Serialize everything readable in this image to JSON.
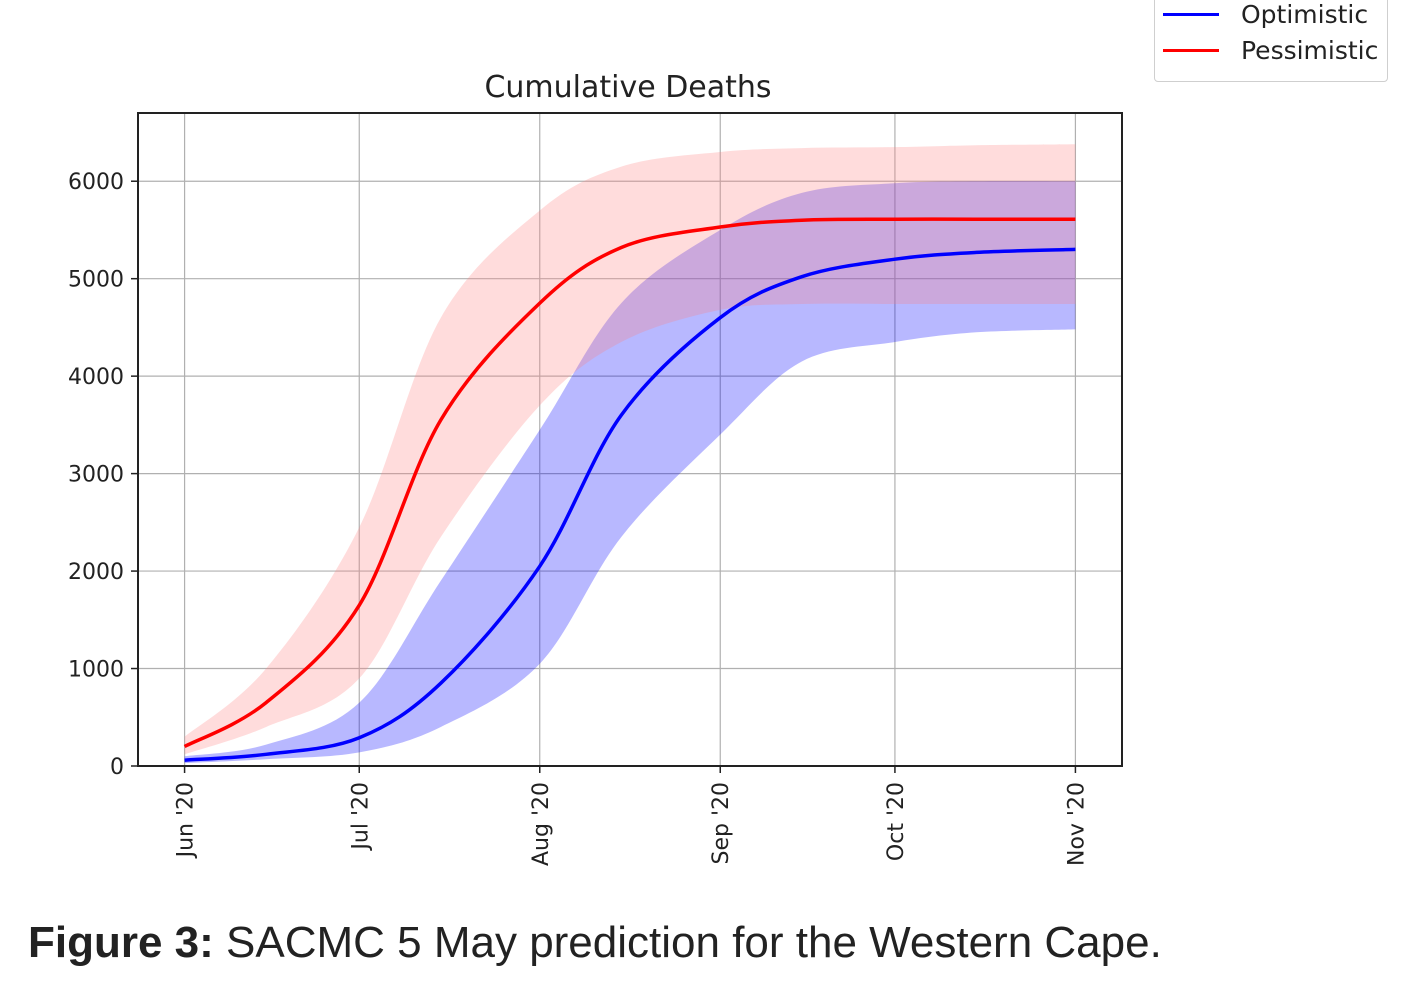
{
  "chart_data": {
    "type": "line",
    "title": "Cumulative Deaths",
    "xlabel": "",
    "ylabel": "",
    "x_ticks": [
      "2020-06-01",
      "2020-07-01",
      "2020-08-01",
      "2020-09-01",
      "2020-10-01",
      "2020-11-01"
    ],
    "x_tick_labels": [
      "Jun '20",
      "Jul '20",
      "Aug '20",
      "Sep '20",
      "Oct '20",
      "Nov '20"
    ],
    "xlim": [
      "2020-05-24",
      "2020-11-09"
    ],
    "y_ticks": [
      0,
      1000,
      2000,
      3000,
      4000,
      5000,
      6000
    ],
    "y_tick_labels": [
      "0",
      "1000",
      "2000",
      "3000",
      "4000",
      "5000",
      "6000"
    ],
    "ylim": [
      0,
      6700
    ],
    "grid": true,
    "legend_position": "top-right, outside plot",
    "series": [
      {
        "name": "Optimistic",
        "color": "#0000ff",
        "band_color": "#0000ff",
        "x": [
          "2020-06-01",
          "2020-06-15",
          "2020-07-01",
          "2020-07-15",
          "2020-08-01",
          "2020-08-15",
          "2020-09-01",
          "2020-09-15",
          "2020-10-01",
          "2020-10-15",
          "2020-11-01"
        ],
        "y": [
          60,
          120,
          290,
          850,
          2050,
          3600,
          4600,
          5020,
          5200,
          5270,
          5300
        ],
        "lower": [
          30,
          70,
          140,
          400,
          1050,
          2350,
          3400,
          4150,
          4350,
          4450,
          4480
        ],
        "upper": [
          100,
          220,
          650,
          1900,
          3450,
          4750,
          5500,
          5880,
          5980,
          6000,
          6000
        ]
      },
      {
        "name": "Pessimistic",
        "color": "#ff0000",
        "band_color": "#ff8080",
        "x": [
          "2020-06-01",
          "2020-06-15",
          "2020-07-01",
          "2020-07-15",
          "2020-08-01",
          "2020-08-15",
          "2020-09-01",
          "2020-09-15",
          "2020-10-01",
          "2020-10-15",
          "2020-11-01"
        ],
        "y": [
          200,
          650,
          1650,
          3550,
          4750,
          5320,
          5530,
          5600,
          5610,
          5610,
          5610
        ],
        "lower": [
          120,
          400,
          900,
          2350,
          3700,
          4350,
          4680,
          4740,
          4740,
          4740,
          4740
        ],
        "upper": [
          300,
          1000,
          2450,
          4600,
          5700,
          6150,
          6300,
          6340,
          6350,
          6370,
          6380
        ]
      }
    ]
  },
  "legend": {
    "items": [
      {
        "label": "Optimistic",
        "color": "#0000ff"
      },
      {
        "label": "Pessimistic",
        "color": "#ff0000"
      }
    ]
  },
  "caption": {
    "label": "Figure 3:",
    "text": " SACMC 5 May prediction for the Western Cape."
  }
}
